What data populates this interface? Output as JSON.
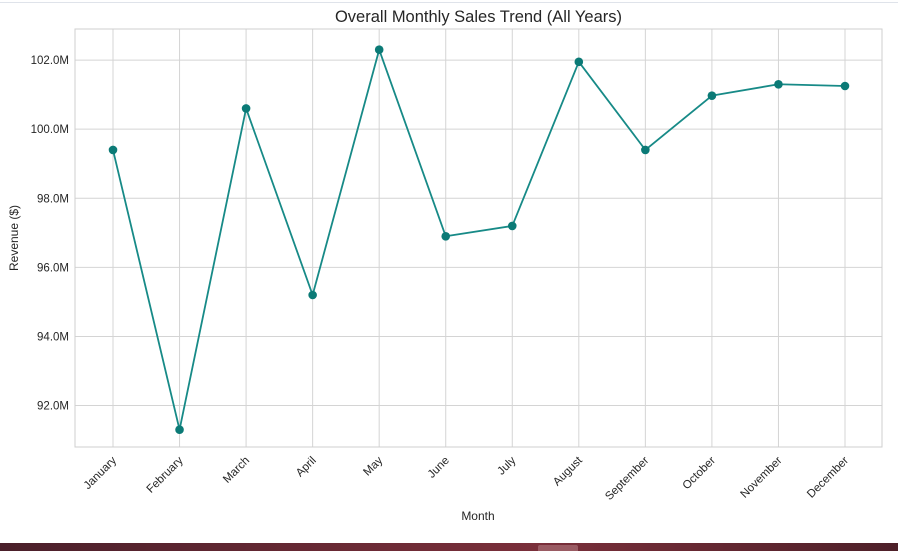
{
  "chart_data": {
    "type": "line",
    "title": "Overall Monthly Sales Trend (All Years)",
    "xlabel": "Month",
    "ylabel": "Revenue ($)",
    "categories": [
      "January",
      "February",
      "March",
      "April",
      "May",
      "June",
      "July",
      "August",
      "September",
      "October",
      "November",
      "December"
    ],
    "series": [
      {
        "values": [
          99.4,
          91.3,
          100.6,
          95.2,
          102.3,
          96.9,
          97.2,
          101.95,
          99.4,
          100.97,
          101.3,
          101.25
        ],
        "color": "#178a87",
        "marker_color": "#0b7a76"
      }
    ],
    "value_unit": "M",
    "ylim": [
      90.8,
      102.9
    ],
    "yticks": [
      92.0,
      94.0,
      96.0,
      98.0,
      100.0,
      102.0
    ],
    "ytick_labels": [
      "92.0M",
      "94.0M",
      "96.0M",
      "98.0M",
      "100.0M",
      "102.0M"
    ],
    "grid": true,
    "grid_color": "#d4d4d4",
    "frame_color": "#cfcfcf",
    "legend": "none"
  }
}
